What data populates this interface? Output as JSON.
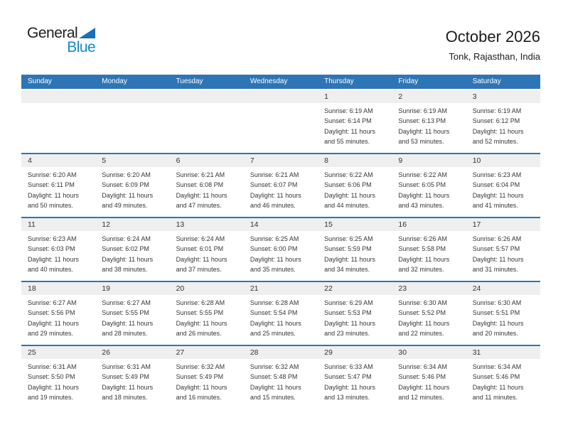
{
  "logo": {
    "general": "General",
    "blue": "Blue"
  },
  "header": {
    "title": "October 2026",
    "location": "Tonk, Rajasthan, India"
  },
  "colors": {
    "accent_blue": "#2e75b6",
    "band_gray": "#efefef",
    "logo_blue_text": "#1588c9",
    "logo_triangle": "#1b6fb5",
    "header_text": "#ffffff",
    "body_text": "#363636"
  },
  "calendar": {
    "weekdays": [
      "Sunday",
      "Monday",
      "Tuesday",
      "Wednesday",
      "Thursday",
      "Friday",
      "Saturday"
    ],
    "weeks": [
      [
        null,
        null,
        null,
        null,
        {
          "day": "1",
          "line1": "Sunrise: 6:19 AM",
          "line2": "Sunset: 6:14 PM",
          "line3": "Daylight: 11 hours",
          "line4": "and 55 minutes."
        },
        {
          "day": "2",
          "line1": "Sunrise: 6:19 AM",
          "line2": "Sunset: 6:13 PM",
          "line3": "Daylight: 11 hours",
          "line4": "and 53 minutes."
        },
        {
          "day": "3",
          "line1": "Sunrise: 6:19 AM",
          "line2": "Sunset: 6:12 PM",
          "line3": "Daylight: 11 hours",
          "line4": "and 52 minutes."
        }
      ],
      [
        {
          "day": "4",
          "line1": "Sunrise: 6:20 AM",
          "line2": "Sunset: 6:11 PM",
          "line3": "Daylight: 11 hours",
          "line4": "and 50 minutes."
        },
        {
          "day": "5",
          "line1": "Sunrise: 6:20 AM",
          "line2": "Sunset: 6:09 PM",
          "line3": "Daylight: 11 hours",
          "line4": "and 49 minutes."
        },
        {
          "day": "6",
          "line1": "Sunrise: 6:21 AM",
          "line2": "Sunset: 6:08 PM",
          "line3": "Daylight: 11 hours",
          "line4": "and 47 minutes."
        },
        {
          "day": "7",
          "line1": "Sunrise: 6:21 AM",
          "line2": "Sunset: 6:07 PM",
          "line3": "Daylight: 11 hours",
          "line4": "and 46 minutes."
        },
        {
          "day": "8",
          "line1": "Sunrise: 6:22 AM",
          "line2": "Sunset: 6:06 PM",
          "line3": "Daylight: 11 hours",
          "line4": "and 44 minutes."
        },
        {
          "day": "9",
          "line1": "Sunrise: 6:22 AM",
          "line2": "Sunset: 6:05 PM",
          "line3": "Daylight: 11 hours",
          "line4": "and 43 minutes."
        },
        {
          "day": "10",
          "line1": "Sunrise: 6:23 AM",
          "line2": "Sunset: 6:04 PM",
          "line3": "Daylight: 11 hours",
          "line4": "and 41 minutes."
        }
      ],
      [
        {
          "day": "11",
          "line1": "Sunrise: 6:23 AM",
          "line2": "Sunset: 6:03 PM",
          "line3": "Daylight: 11 hours",
          "line4": "and 40 minutes."
        },
        {
          "day": "12",
          "line1": "Sunrise: 6:24 AM",
          "line2": "Sunset: 6:02 PM",
          "line3": "Daylight: 11 hours",
          "line4": "and 38 minutes."
        },
        {
          "day": "13",
          "line1": "Sunrise: 6:24 AM",
          "line2": "Sunset: 6:01 PM",
          "line3": "Daylight: 11 hours",
          "line4": "and 37 minutes."
        },
        {
          "day": "14",
          "line1": "Sunrise: 6:25 AM",
          "line2": "Sunset: 6:00 PM",
          "line3": "Daylight: 11 hours",
          "line4": "and 35 minutes."
        },
        {
          "day": "15",
          "line1": "Sunrise: 6:25 AM",
          "line2": "Sunset: 5:59 PM",
          "line3": "Daylight: 11 hours",
          "line4": "and 34 minutes."
        },
        {
          "day": "16",
          "line1": "Sunrise: 6:26 AM",
          "line2": "Sunset: 5:58 PM",
          "line3": "Daylight: 11 hours",
          "line4": "and 32 minutes."
        },
        {
          "day": "17",
          "line1": "Sunrise: 6:26 AM",
          "line2": "Sunset: 5:57 PM",
          "line3": "Daylight: 11 hours",
          "line4": "and 31 minutes."
        }
      ],
      [
        {
          "day": "18",
          "line1": "Sunrise: 6:27 AM",
          "line2": "Sunset: 5:56 PM",
          "line3": "Daylight: 11 hours",
          "line4": "and 29 minutes."
        },
        {
          "day": "19",
          "line1": "Sunrise: 6:27 AM",
          "line2": "Sunset: 5:55 PM",
          "line3": "Daylight: 11 hours",
          "line4": "and 28 minutes."
        },
        {
          "day": "20",
          "line1": "Sunrise: 6:28 AM",
          "line2": "Sunset: 5:55 PM",
          "line3": "Daylight: 11 hours",
          "line4": "and 26 minutes."
        },
        {
          "day": "21",
          "line1": "Sunrise: 6:28 AM",
          "line2": "Sunset: 5:54 PM",
          "line3": "Daylight: 11 hours",
          "line4": "and 25 minutes."
        },
        {
          "day": "22",
          "line1": "Sunrise: 6:29 AM",
          "line2": "Sunset: 5:53 PM",
          "line3": "Daylight: 11 hours",
          "line4": "and 23 minutes."
        },
        {
          "day": "23",
          "line1": "Sunrise: 6:30 AM",
          "line2": "Sunset: 5:52 PM",
          "line3": "Daylight: 11 hours",
          "line4": "and 22 minutes."
        },
        {
          "day": "24",
          "line1": "Sunrise: 6:30 AM",
          "line2": "Sunset: 5:51 PM",
          "line3": "Daylight: 11 hours",
          "line4": "and 20 minutes."
        }
      ],
      [
        {
          "day": "25",
          "line1": "Sunrise: 6:31 AM",
          "line2": "Sunset: 5:50 PM",
          "line3": "Daylight: 11 hours",
          "line4": "and 19 minutes."
        },
        {
          "day": "26",
          "line1": "Sunrise: 6:31 AM",
          "line2": "Sunset: 5:49 PM",
          "line3": "Daylight: 11 hours",
          "line4": "and 18 minutes."
        },
        {
          "day": "27",
          "line1": "Sunrise: 6:32 AM",
          "line2": "Sunset: 5:49 PM",
          "line3": "Daylight: 11 hours",
          "line4": "and 16 minutes."
        },
        {
          "day": "28",
          "line1": "Sunrise: 6:32 AM",
          "line2": "Sunset: 5:48 PM",
          "line3": "Daylight: 11 hours",
          "line4": "and 15 minutes."
        },
        {
          "day": "29",
          "line1": "Sunrise: 6:33 AM",
          "line2": "Sunset: 5:47 PM",
          "line3": "Daylight: 11 hours",
          "line4": "and 13 minutes."
        },
        {
          "day": "30",
          "line1": "Sunrise: 6:34 AM",
          "line2": "Sunset: 5:46 PM",
          "line3": "Daylight: 11 hours",
          "line4": "and 12 minutes."
        },
        {
          "day": "31",
          "line1": "Sunrise: 6:34 AM",
          "line2": "Sunset: 5:46 PM",
          "line3": "Daylight: 11 hours",
          "line4": "and 11 minutes."
        }
      ]
    ]
  }
}
